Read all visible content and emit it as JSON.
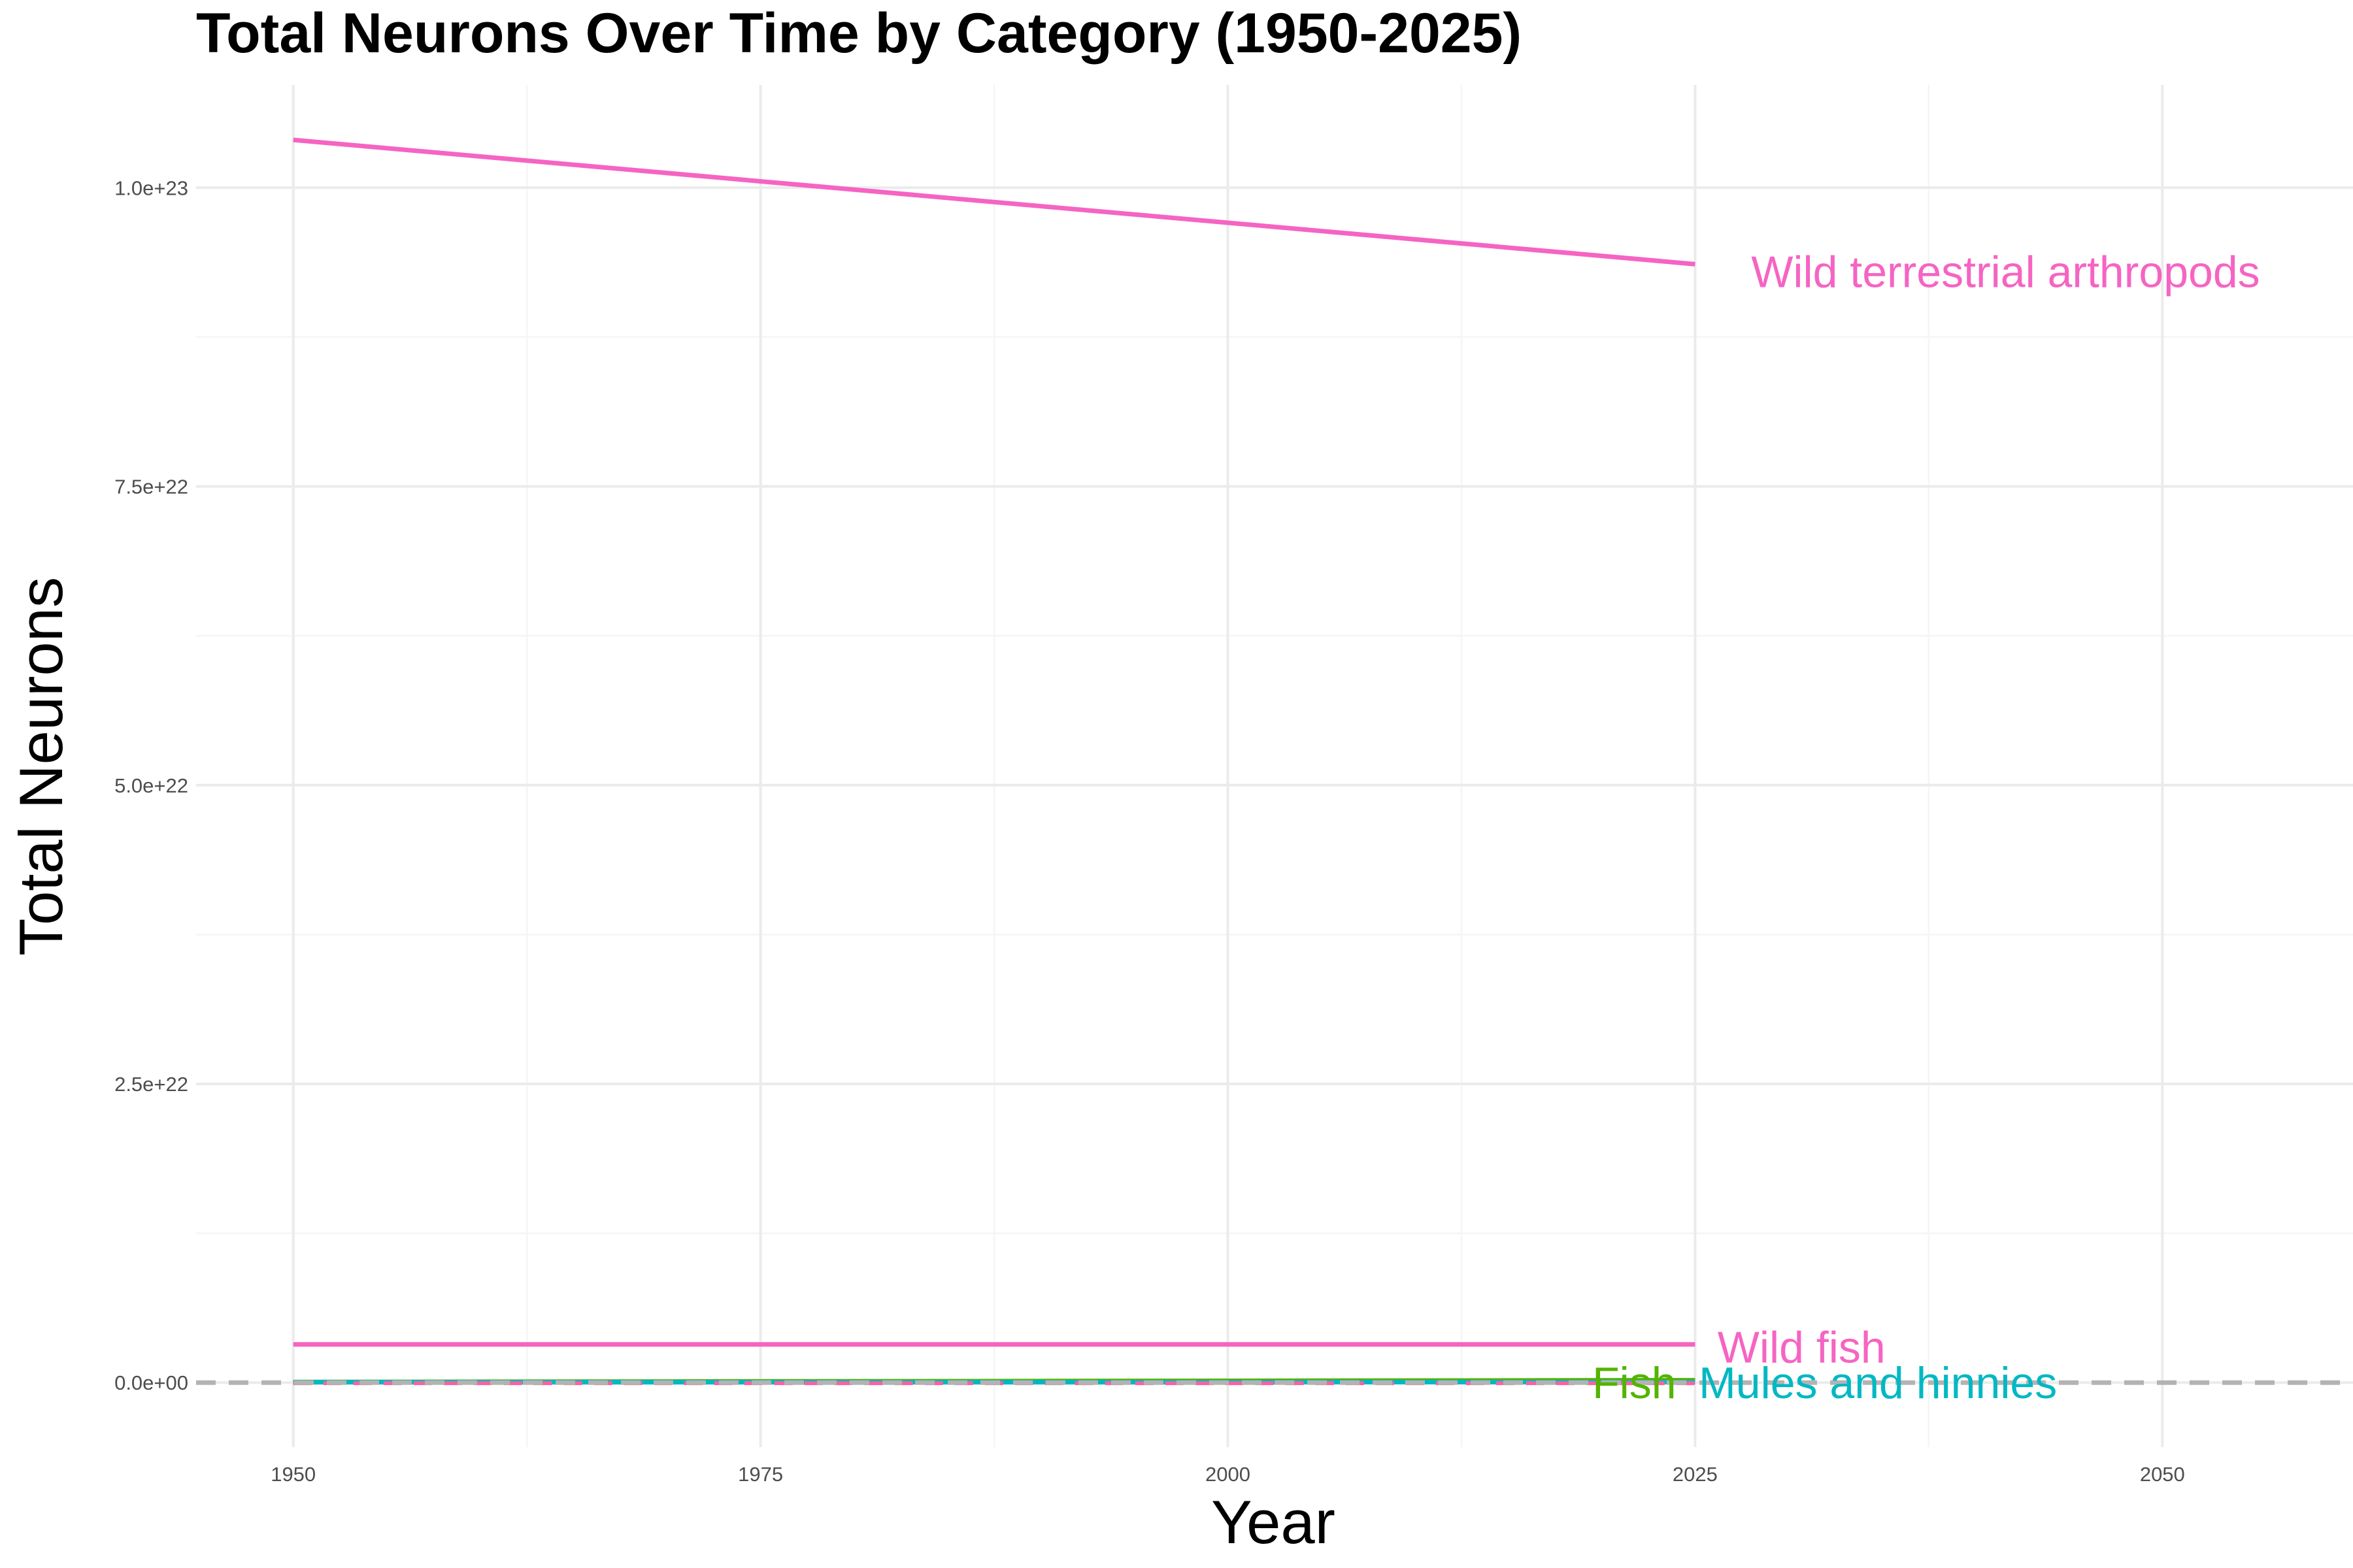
{
  "chart_data": {
    "type": "line",
    "title": "Total Neurons Over Time by Category (1950-2025)",
    "xlabel": "Year",
    "ylabel": "Total Neurons",
    "xlim": [
      1944.8,
      2060.2
    ],
    "ylim": [
      -5.4e+21,
      1.086e+23
    ],
    "x_ticks": [
      1950,
      1975,
      2000,
      2025,
      2050
    ],
    "x_tick_labels": [
      "1950",
      "1975",
      "2000",
      "2025",
      "2050"
    ],
    "y_ticks": [
      0,
      2.5e+22,
      5e+22,
      7.5e+22,
      1e+23
    ],
    "y_tick_labels": [
      "0.0e+00",
      "2.5e+22",
      "5.0e+22",
      "7.5e+22",
      "1.0e+23"
    ],
    "grid": true,
    "legend": "none",
    "reference_line": {
      "y": 0,
      "style": "dashed",
      "color": "#b3b3b3"
    },
    "series": [
      {
        "name": "Wild terrestrial arthropods",
        "color": "#f564c3",
        "dash": "solid",
        "x": [
          1950,
          2025
        ],
        "y": [
          1.04e+23,
          9.36e+22
        ],
        "label_year": 2028,
        "label_value": 9.3e+22
      },
      {
        "name": "Wild fish",
        "color": "#f564c3",
        "dash": "solid",
        "x": [
          1950,
          2025
        ],
        "y": [
          3.2e+21,
          3.2e+21
        ],
        "label_year": 2026.2,
        "label_value": 3e+21
      },
      {
        "name": "Fish",
        "color": "#53b400",
        "dash": "solid",
        "x": [
          1950,
          2025
        ],
        "y": [
          5e+19,
          2e+20
        ],
        "label_year": 2019.5,
        "label_value": 0
      },
      {
        "name": "Mules and hinnies",
        "color": "#00b8c3",
        "dash": "solid",
        "x": [
          1950,
          2025
        ],
        "y": [
          3e+19,
          4e+19
        ],
        "label_year": 2025.2,
        "label_value": 0
      },
      {
        "name": "",
        "color": "#f564a0",
        "dash": "dashed",
        "x": [
          1950,
          2025
        ],
        "y": [
          -5e+19,
          -5e+19
        ]
      }
    ]
  }
}
